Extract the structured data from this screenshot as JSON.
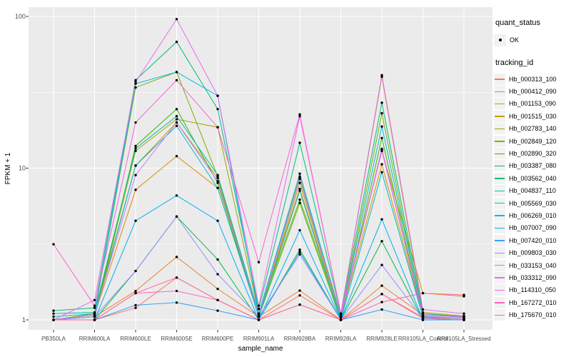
{
  "figure": {
    "y_axis": {
      "title": "FPKM + 1",
      "ticks": [
        "100",
        "10",
        "1"
      ]
    },
    "x_axis": {
      "title": "sample_name"
    },
    "legend": {
      "quant_status_title": "quant_status",
      "quant_status_items": [
        {
          "label": "OK",
          "marker": "point-icon"
        }
      ],
      "tracking_id_title": "tracking_id"
    },
    "colors": {
      "panel_bg": "#EBEBEB",
      "grid": "#FFFFFF",
      "legend_key_bg": "#F2F2F2",
      "tick_text": "#4D4D4D",
      "point_marker": "#000000"
    }
  },
  "chart_data": {
    "type": "line",
    "x_type": "categorical",
    "y_scale": "log10",
    "xlabel": "sample_name",
    "ylabel": "FPKM + 1",
    "ylim": [
      1,
      100
    ],
    "y_ticks": [
      1,
      10,
      100
    ],
    "grid": true,
    "legend_position": "right",
    "point_marker_label": "OK",
    "categories": [
      "PB350LA",
      "RRIM600LA",
      "RRIM600LE",
      "RRIM600SE",
      "RRIM600PE",
      "RRIM901LA",
      "RRIM928BA",
      "RRIM928LA",
      "RRIM928LE",
      "RRII105LA_Control",
      "RRII105LA_Stressed"
    ],
    "series": [
      {
        "name": "Hb_000313_100",
        "color": "#F8766D",
        "values": [
          1.0,
          1.0,
          1.2,
          1.9,
          1.35,
          1.0,
          1.45,
          1.0,
          1.48,
          1.02,
          1.0
        ]
      },
      {
        "name": "Hb_000412_090",
        "color": "#EA8331",
        "values": [
          1.0,
          1.05,
          1.55,
          2.6,
          1.6,
          1.05,
          1.56,
          1.0,
          1.68,
          1.08,
          1.04
        ]
      },
      {
        "name": "Hb_001153_090",
        "color": "#D89000",
        "values": [
          1.0,
          1.08,
          7.2,
          12.0,
          7.4,
          1.08,
          7.3,
          1.04,
          10.6,
          1.06,
          1.02
        ]
      },
      {
        "name": "Hb_001515_030",
        "color": "#C09B00",
        "values": [
          1.0,
          1.1,
          10.4,
          20.0,
          8.6,
          1.05,
          8.0,
          1.05,
          13.0,
          1.5,
          1.43
        ]
      },
      {
        "name": "Hb_002783_140",
        "color": "#A3A500",
        "values": [
          1.0,
          1.05,
          13.0,
          21.0,
          18.6,
          1.1,
          8.8,
          1.08,
          40.0,
          1.12,
          1.06
        ]
      },
      {
        "name": "Hb_002849_120",
        "color": "#7CAE00",
        "values": [
          1.0,
          1.1,
          34.0,
          43.0,
          8.8,
          1.1,
          6.2,
          1.04,
          23.0,
          1.04,
          1.0
        ]
      },
      {
        "name": "Hb_002890_320",
        "color": "#39B600",
        "values": [
          1.0,
          1.05,
          14.0,
          24.5,
          8.0,
          1.05,
          5.9,
          1.0,
          15.8,
          1.04,
          1.0
        ]
      },
      {
        "name": "Hb_003387_080",
        "color": "#00BB4E",
        "values": [
          1.0,
          1.0,
          2.1,
          4.8,
          2.5,
          1.0,
          2.9,
          1.0,
          3.3,
          1.0,
          1.0
        ]
      },
      {
        "name": "Hb_003562_040",
        "color": "#00BF7D",
        "values": [
          1.15,
          1.2,
          38.0,
          68.0,
          24.5,
          1.18,
          14.7,
          1.1,
          27.0,
          1.1,
          1.05
        ]
      },
      {
        "name": "Hb_004837_110",
        "color": "#00C1A3",
        "values": [
          1.1,
          1.12,
          13.5,
          22.0,
          9.0,
          1.1,
          8.5,
          1.05,
          13.2,
          1.05,
          1.02
        ]
      },
      {
        "name": "Hb_005569_030",
        "color": "#00BFC4",
        "values": [
          1.0,
          1.05,
          10.4,
          19.0,
          7.4,
          1.05,
          7.1,
          1.0,
          9.4,
          1.04,
          1.0
        ]
      },
      {
        "name": "Hb_006269_010",
        "color": "#00BAE0",
        "values": [
          1.05,
          1.1,
          36.0,
          43.0,
          30.0,
          1.1,
          9.2,
          1.05,
          18.8,
          1.08,
          1.04
        ]
      },
      {
        "name": "Hb_007007_090",
        "color": "#00B0F6",
        "values": [
          1.0,
          1.0,
          4.5,
          6.6,
          4.5,
          1.0,
          3.9,
          1.0,
          4.6,
          1.0,
          1.0
        ]
      },
      {
        "name": "Hb_007420_010",
        "color": "#35A2FF",
        "values": [
          1.0,
          1.0,
          1.25,
          1.3,
          1.15,
          1.0,
          2.8,
          1.0,
          1.17,
          1.0,
          1.0
        ]
      },
      {
        "name": "Hb_009803_030",
        "color": "#9590FF",
        "values": [
          1.0,
          1.05,
          2.1,
          4.8,
          2.0,
          1.05,
          2.7,
          1.0,
          2.3,
          1.02,
          1.0
        ]
      },
      {
        "name": "Hb_033153_040",
        "color": "#C77CFF",
        "values": [
          1.0,
          1.08,
          9.0,
          20.0,
          8.2,
          1.08,
          8.6,
          1.04,
          13.4,
          1.06,
          1.02
        ]
      },
      {
        "name": "Hb_033312_090",
        "color": "#E76BF3",
        "values": [
          1.0,
          1.35,
          37.0,
          96.0,
          30.0,
          1.24,
          22.0,
          1.1,
          41.0,
          1.17,
          1.1
        ]
      },
      {
        "name": "Hb_114310_050",
        "color": "#FA62DB",
        "values": [
          3.15,
          1.24,
          20.0,
          38.0,
          18.6,
          2.4,
          22.6,
          1.1,
          13.0,
          1.08,
          1.05
        ]
      },
      {
        "name": "Hb_167272_010",
        "color": "#FF62BC",
        "values": [
          1.0,
          1.0,
          1.5,
          1.55,
          1.35,
          1.0,
          1.26,
          1.0,
          1.31,
          1.5,
          1.46
        ]
      },
      {
        "name": "Hb_175670_010",
        "color": "#FF6A98",
        "values": [
          1.0,
          1.0,
          1.5,
          1.9,
          1.35,
          1.0,
          1.26,
          1.0,
          1.48,
          1.04,
          1.0
        ]
      }
    ]
  }
}
